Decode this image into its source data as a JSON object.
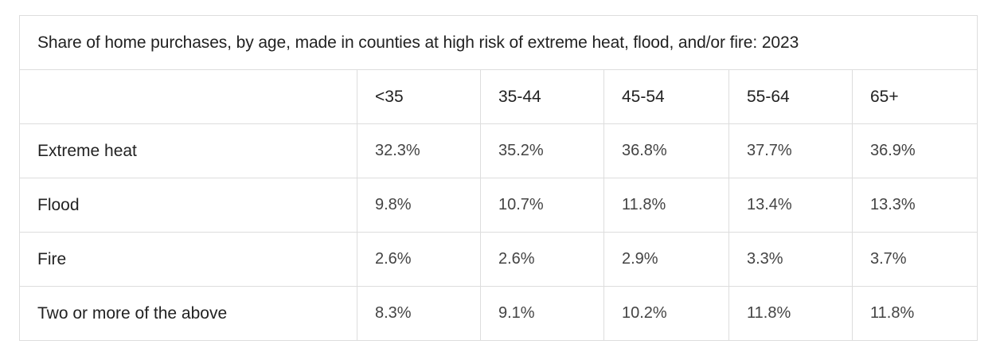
{
  "chart_data": {
    "type": "table",
    "title": "Share of home purchases, by age, made in counties at high risk of extreme heat, flood, and/or fire: 2023",
    "columns": [
      "",
      "<35",
      "35-44",
      "45-54",
      "55-64",
      "65+"
    ],
    "rows": [
      {
        "label": "Extreme heat",
        "values": [
          "32.3%",
          "35.2%",
          "36.8%",
          "37.7%",
          "36.9%"
        ]
      },
      {
        "label": "Flood",
        "values": [
          "9.8%",
          "10.7%",
          "11.8%",
          "13.4%",
          "13.3%"
        ]
      },
      {
        "label": "Fire",
        "values": [
          "2.6%",
          "2.6%",
          "2.9%",
          "3.3%",
          "3.7%"
        ]
      },
      {
        "label": "Two or more of the above",
        "values": [
          "8.3%",
          "9.1%",
          "10.2%",
          "11.8%",
          "11.8%"
        ]
      }
    ]
  }
}
